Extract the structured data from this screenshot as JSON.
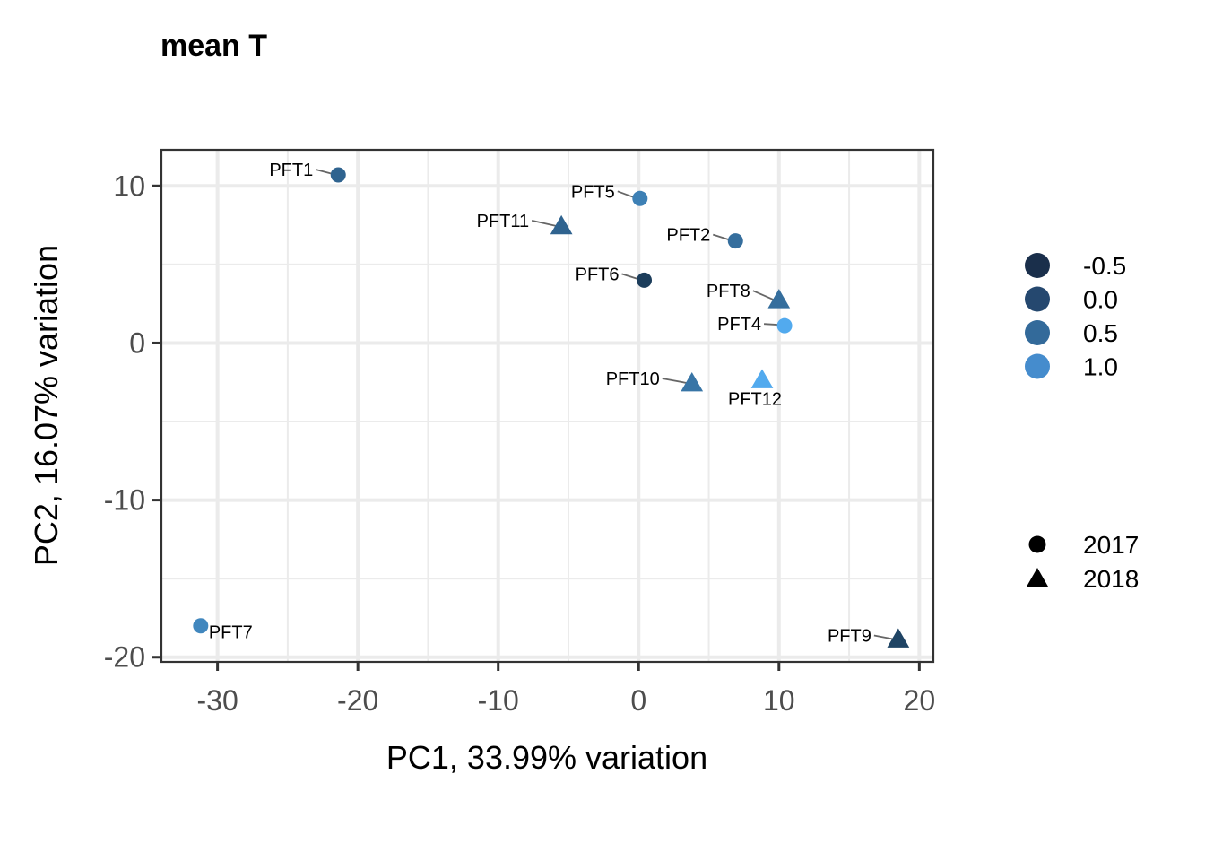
{
  "chart_data": {
    "type": "scatter",
    "title": "mean T",
    "xlabel": "PC1, 33.99% variation",
    "ylabel": "PC2, 16.07% variation",
    "xlim": [
      -34,
      21
    ],
    "ylim": [
      -20.3,
      12.3
    ],
    "xticks": [
      -30,
      -20,
      -10,
      0,
      10,
      20
    ],
    "xtick_labels": [
      "-30",
      "-20",
      "-10",
      "0",
      "10",
      "20"
    ],
    "yticks": [
      -20,
      -10,
      0,
      10
    ],
    "ytick_labels": [
      "-20",
      "-10",
      "0",
      "10"
    ],
    "grid": true,
    "points": [
      {
        "label": "PFT1",
        "x": -21.4,
        "y": 10.7,
        "value": 0.05,
        "year": "2017"
      },
      {
        "label": "PFT5",
        "x": 0.1,
        "y": 9.2,
        "value": 0.45,
        "year": "2017"
      },
      {
        "label": "PFT11",
        "x": -5.5,
        "y": 7.4,
        "value": 0.05,
        "year": "2018"
      },
      {
        "label": "PFT2",
        "x": 6.9,
        "y": 6.5,
        "value": 0.2,
        "year": "2017"
      },
      {
        "label": "PFT6",
        "x": 0.4,
        "y": 4.0,
        "value": -0.5,
        "year": "2017"
      },
      {
        "label": "PFT8",
        "x": 10.0,
        "y": 2.7,
        "value": 0.2,
        "year": "2018"
      },
      {
        "label": "PFT4",
        "x": 10.4,
        "y": 1.1,
        "value": 1.05,
        "year": "2017"
      },
      {
        "label": "PFT10",
        "x": 3.8,
        "y": -2.6,
        "value": 0.3,
        "year": "2018"
      },
      {
        "label": "PFT12",
        "x": 8.8,
        "y": -2.4,
        "value": 1.05,
        "year": "2018"
      },
      {
        "label": "PFT7",
        "x": -31.2,
        "y": -18.0,
        "value": 0.55,
        "year": "2017"
      },
      {
        "label": "PFT9",
        "x": 18.5,
        "y": -18.9,
        "value": -0.4,
        "year": "2018"
      }
    ],
    "color_legend": {
      "entries": [
        {
          "label": "-0.5",
          "value": -0.5,
          "color": "#1a2f4b"
        },
        {
          "label": "0.0",
          "value": 0.0,
          "color": "#25486f"
        },
        {
          "label": "0.5",
          "value": 0.5,
          "color": "#336a9a"
        },
        {
          "label": "1.0",
          "value": 1.0,
          "color": "#458ccd"
        }
      ]
    },
    "color_scale": {
      "low": "#132b43",
      "high": "#56b1f7",
      "domain": [
        -0.75,
        1.15
      ]
    },
    "shape_legend": {
      "entries": [
        {
          "label": "2017",
          "shape": "circle"
        },
        {
          "label": "2018",
          "shape": "triangle"
        }
      ]
    },
    "legend_position": "right",
    "colors": {
      "grid": "#ebebeb",
      "tick_text": "#4d4d4d",
      "axis": "#333333",
      "leader": "#666666"
    }
  }
}
